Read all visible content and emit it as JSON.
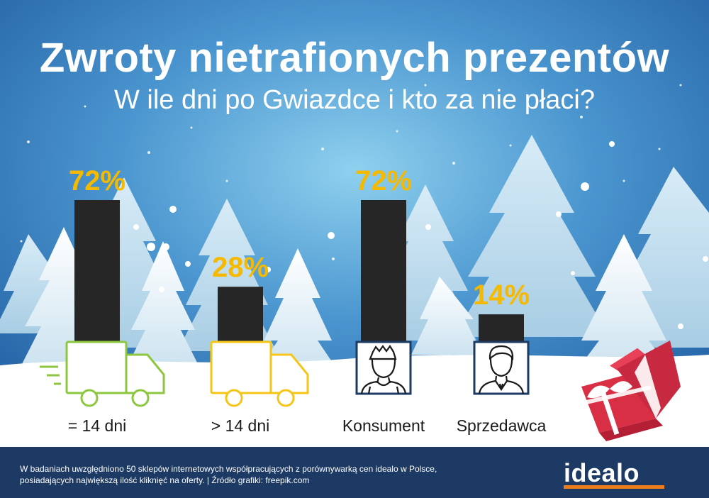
{
  "title": "Zwroty nietrafionych prezentów",
  "subtitle": "W ile dni po Gwiazdce i kto za nie płaci?",
  "chart_data": {
    "type": "bar",
    "title": "Zwroty nietrafionych prezentów",
    "subtitle": "W ile dni po Gwiazdce i kto za nie płaci?",
    "categories": [
      "= 14 dni",
      "> 14 dni",
      "Konsument",
      "Sprzedawca"
    ],
    "values": [
      72,
      28,
      72,
      14
    ],
    "value_labels": [
      "72%",
      "28%",
      "72%",
      "14%"
    ],
    "unit": "%",
    "ylim": [
      0,
      100
    ],
    "legend": "none",
    "grid": false,
    "icons": [
      "delivery-truck-green",
      "delivery-truck-yellow",
      "consumer-person",
      "seller-person"
    ],
    "colors": {
      "bar": "#262626",
      "value_label": "#f5b900",
      "category_label": "#1a1a1a",
      "truck_green": "#8dc63f",
      "truck_yellow": "#f5c518",
      "person_frame": "#1c3a64"
    }
  },
  "footer": {
    "line1": "W badaniach uwzględniono 50 sklepów internetowych współpracujących z porównywarką cen idealo w Polsce,",
    "line2": "posiadających największą ilość kliknięć na oferty.  | Źródło grafiki: freepik.com",
    "logo": "idealo",
    "accent": "#f07d1b"
  }
}
